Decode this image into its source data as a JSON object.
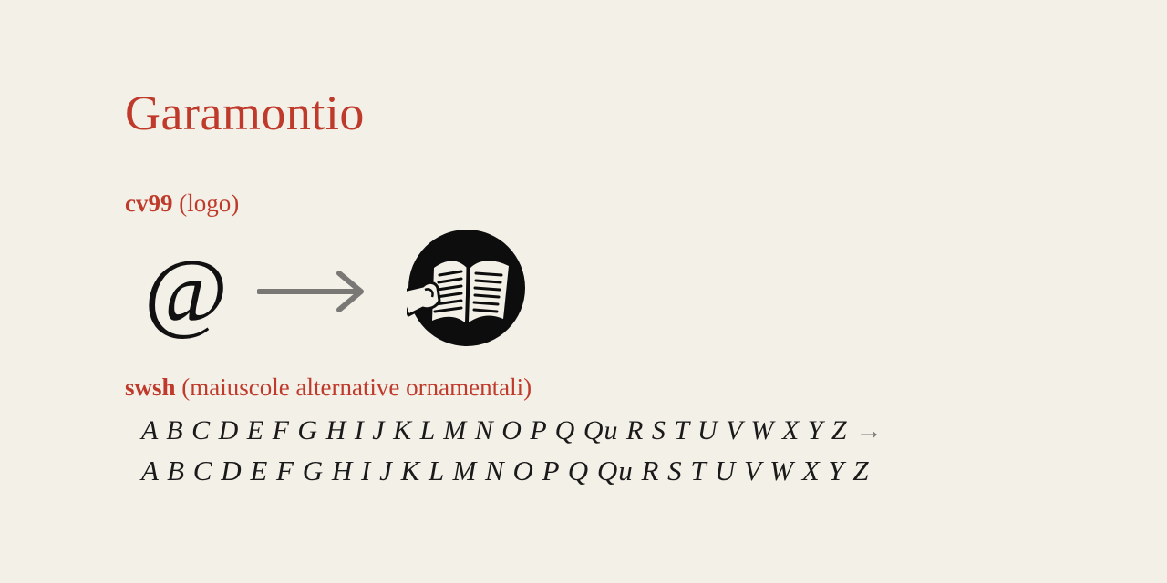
{
  "title": "Garamontio",
  "cv99": {
    "tag": "cv99",
    "desc": "(logo)",
    "source_glyph": "@"
  },
  "swsh": {
    "tag": "swsh",
    "desc": "(maiuscole alternative ornamentali)",
    "row_standard": "A B C D E F G H I J K L M N O P Q Qu R S T U V W X Y Z",
    "row_standard_arrow": " →",
    "row_swash": "A B C D E F G H I J K L M N O P Q Qu R S T U V W X Y Z"
  },
  "colors": {
    "accent": "#bf3a2b",
    "background": "#f3f0e8",
    "text": "#1a1a1a",
    "arrow": "#7a7875"
  },
  "icons": {
    "arrow": "right-arrow-icon",
    "logo": "open-book-hand-logo-icon"
  }
}
